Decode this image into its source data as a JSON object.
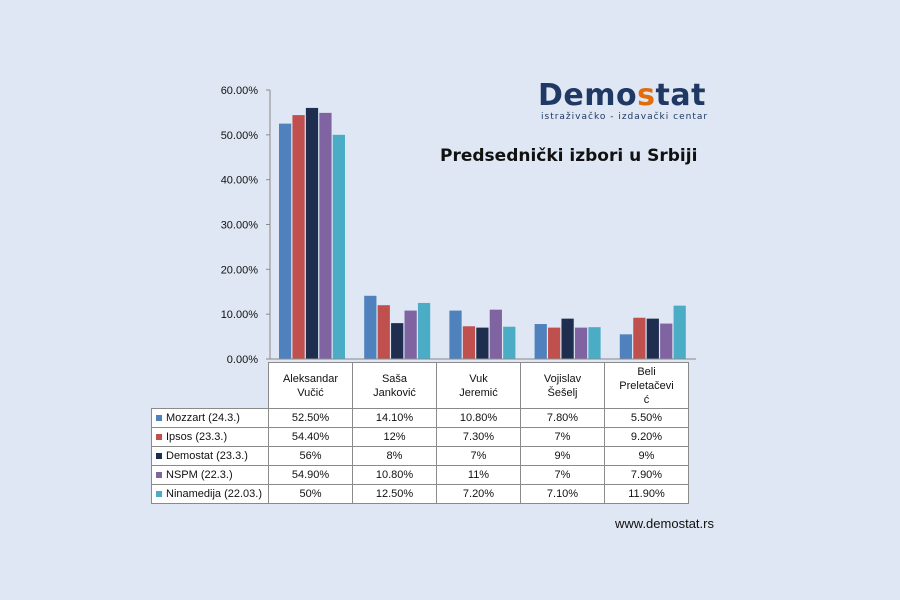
{
  "logo": {
    "name_part1": "Demo",
    "name_accent": "s",
    "name_part2": "tat",
    "subtitle": "istraživačko - izdavački centar"
  },
  "website": "www.demostat.rs",
  "chart_data": {
    "type": "bar",
    "title": "Predsednički izbori u Srbiji",
    "categories": [
      "Aleksandar Vučić",
      "Saša Janković",
      "Vuk Jeremić",
      "Vojislav Šešelj",
      "Beli Preletačević"
    ],
    "category_lines": [
      [
        "Aleksandar",
        "Vučić"
      ],
      [
        "Saša",
        "Janković"
      ],
      [
        "Vuk",
        "Jeremić"
      ],
      [
        "Vojislav",
        "Šešelj"
      ],
      [
        "Beli",
        "Preletačevi",
        "ć"
      ]
    ],
    "ylim": [
      0,
      60
    ],
    "yticks": [
      0,
      10,
      20,
      30,
      40,
      50,
      60
    ],
    "ytick_labels": [
      "0.00%",
      "10.00%",
      "20.00%",
      "30.00%",
      "40.00%",
      "50.00%",
      "60.00%"
    ],
    "series": [
      {
        "name": "Mozzart  (24.3.)",
        "color": "#4f81bd",
        "values": [
          52.5,
          14.1,
          10.8,
          7.8,
          5.5
        ],
        "labels": [
          "52.50%",
          "14.10%",
          "10.80%",
          "7.80%",
          "5.50%"
        ]
      },
      {
        "name": "Ipsos (23.3.)",
        "color": "#c0504d",
        "values": [
          54.4,
          12,
          7.3,
          7,
          9.2
        ],
        "labels": [
          "54.40%",
          "12%",
          "7.30%",
          "7%",
          "9.20%"
        ]
      },
      {
        "name": "Demostat (23.3.)",
        "color": "#1f2d4f",
        "values": [
          56,
          8,
          7,
          9,
          9
        ],
        "labels": [
          "56%",
          "8%",
          "7%",
          "9%",
          "9%"
        ]
      },
      {
        "name": "NSPM (22.3.)",
        "color": "#8064a2",
        "values": [
          54.9,
          10.8,
          11,
          7,
          7.9
        ],
        "labels": [
          "54.90%",
          "10.80%",
          "11%",
          "7%",
          "7.90%"
        ]
      },
      {
        "name": "Ninamedija (22.03.)",
        "color": "#4bacc6",
        "values": [
          50,
          12.5,
          7.2,
          7.1,
          11.9
        ],
        "labels": [
          "50%",
          "12.50%",
          "7.20%",
          "7.10%",
          "11.90%"
        ]
      }
    ]
  }
}
